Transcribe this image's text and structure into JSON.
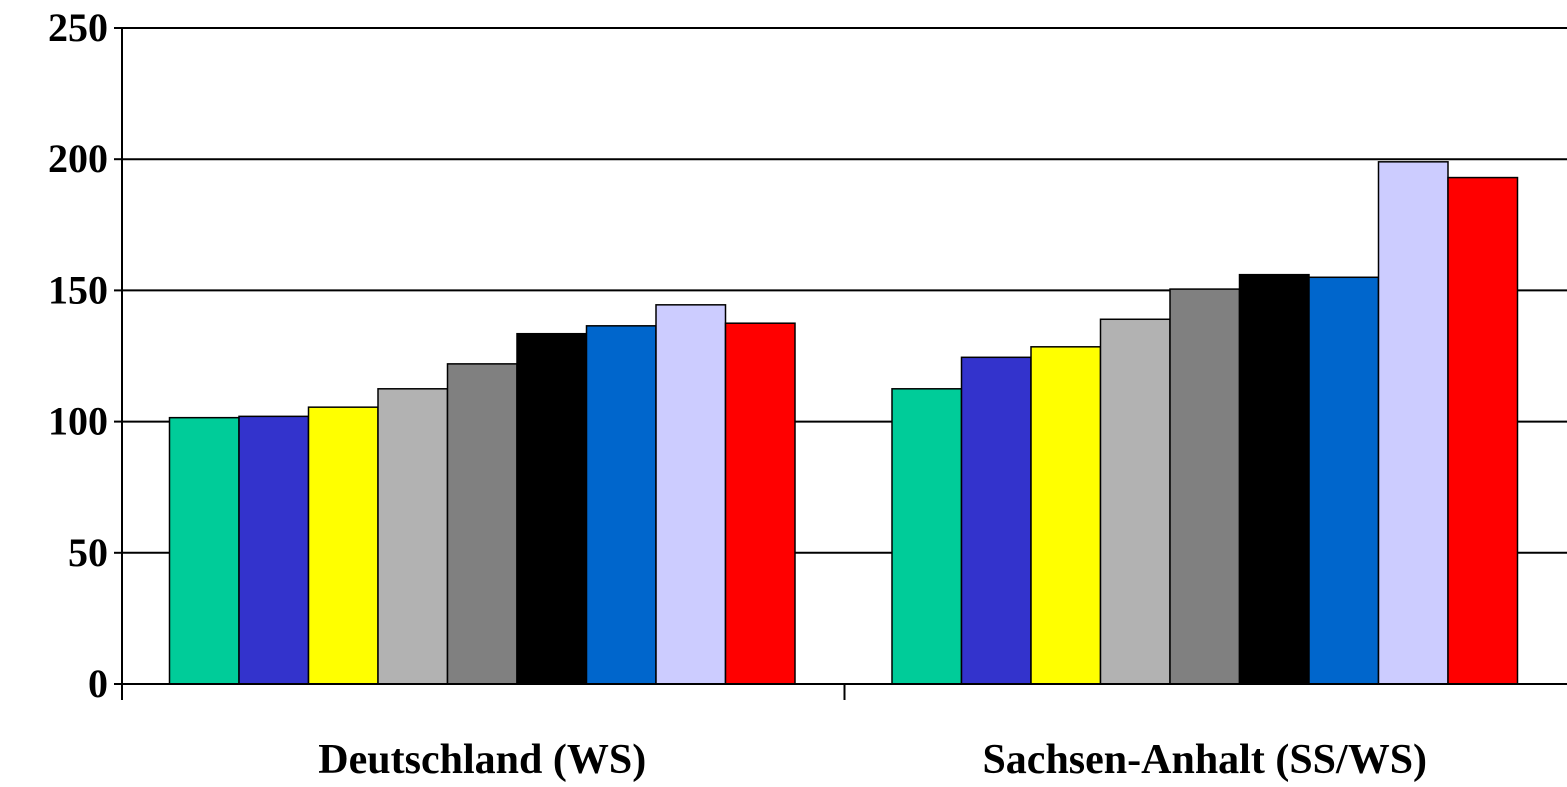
{
  "chart_data": {
    "type": "bar",
    "title": "",
    "xlabel": "",
    "ylabel": "",
    "categories": [
      "Deutschland (WS)",
      "Sachsen-Anhalt (SS/WS)"
    ],
    "ylim": [
      0,
      250
    ],
    "yticks": [
      "0",
      "50",
      "100",
      "150",
      "200",
      "250"
    ],
    "grid": true,
    "legend": "none",
    "series": [
      {
        "color": "#00CC99",
        "values": [
          101.5,
          112.5
        ]
      },
      {
        "color": "#3333CC",
        "values": [
          102,
          124.5
        ]
      },
      {
        "color": "#FFFF00",
        "values": [
          105.5,
          128.5
        ]
      },
      {
        "color": "#B2B2B2",
        "values": [
          112.5,
          139
        ]
      },
      {
        "color": "#808080",
        "values": [
          122,
          150.5
        ]
      },
      {
        "color": "#000000",
        "values": [
          133.5,
          156
        ]
      },
      {
        "color": "#0066CC",
        "values": [
          136.5,
          155
        ]
      },
      {
        "color": "#CCCCFF",
        "values": [
          144.5,
          199
        ]
      },
      {
        "color": "#FF0000",
        "values": [
          137.5,
          193
        ]
      }
    ]
  }
}
